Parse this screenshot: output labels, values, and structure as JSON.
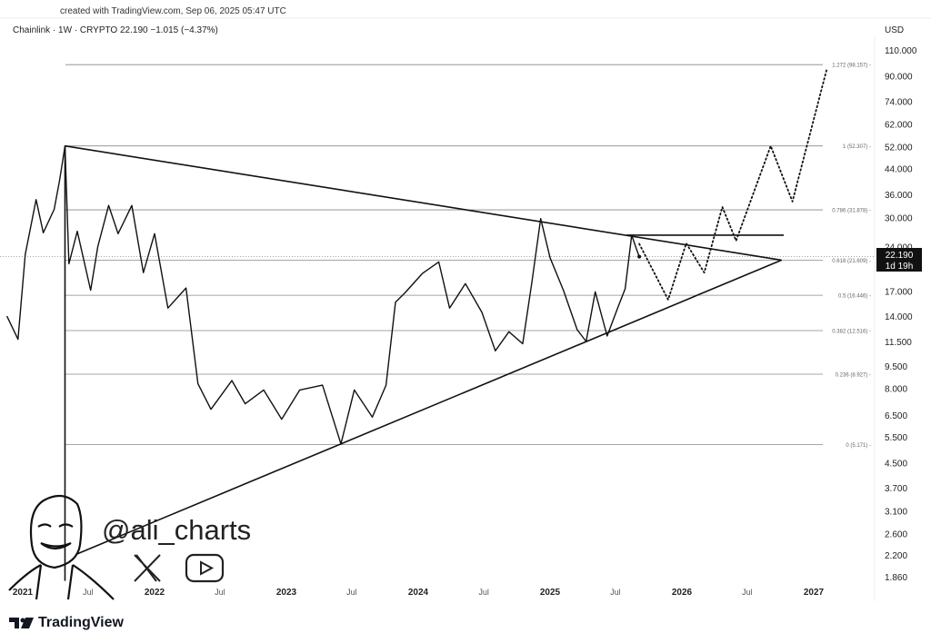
{
  "header": {
    "credit": "created with TradingView.com, Sep 06, 2025 05:47 UTC",
    "symbol_legend": "Chainlink · 1W · CRYPTO  22.190  −1.015 (−4.37%)",
    "currency": "USD"
  },
  "watermark": {
    "handle": "@ali_charts",
    "icons": [
      "x-logo-icon",
      "youtube-icon"
    ]
  },
  "footer": {
    "brand": "TradingView"
  },
  "chart_data": {
    "type": "line",
    "title": "",
    "xlabel": "",
    "ylabel": "",
    "y_scale": "log",
    "ylim": [
      1.86,
      110
    ],
    "xlim": [
      "2020-11-01",
      "2027-04-01"
    ],
    "grid": false,
    "y_ticks": [
      "110.000",
      "90.000",
      "74.000",
      "62.000",
      "52.000",
      "44.000",
      "36.000",
      "30.000",
      "24.000",
      "17.000",
      "14.000",
      "11.500",
      "9.500",
      "8.000",
      "6.500",
      "5.500",
      "4.500",
      "3.700",
      "3.100",
      "2.600",
      "2.200",
      "1.860"
    ],
    "x_ticks": [
      {
        "date": "2021-01-01",
        "label": "2021"
      },
      {
        "date": "2021-07-01",
        "label": "Jul"
      },
      {
        "date": "2022-01-01",
        "label": "2022"
      },
      {
        "date": "2022-07-01",
        "label": "Jul"
      },
      {
        "date": "2023-01-01",
        "label": "2023"
      },
      {
        "date": "2023-07-01",
        "label": "Jul"
      },
      {
        "date": "2024-01-01",
        "label": "2024"
      },
      {
        "date": "2024-07-01",
        "label": "Jul"
      },
      {
        "date": "2025-01-01",
        "label": "2025"
      },
      {
        "date": "2025-07-01",
        "label": "Jul"
      },
      {
        "date": "2026-01-01",
        "label": "2026"
      },
      {
        "date": "2026-07-01",
        "label": "Jul"
      },
      {
        "date": "2027-01-01",
        "label": "2027"
      }
    ],
    "current_price": {
      "value": 22.19,
      "label": "22.190",
      "countdown": "1d 19h"
    },
    "series": [
      {
        "style": "solid",
        "points": [
          [
            "2020-11-18",
            14.0
          ],
          [
            "2020-12-19",
            11.7
          ],
          [
            "2021-01-08",
            22.6
          ],
          [
            "2021-02-07",
            34.5
          ],
          [
            "2021-02-27",
            26.7
          ],
          [
            "2021-03-29",
            32.0
          ],
          [
            "2021-04-13",
            40.0
          ],
          [
            "2021-04-28",
            52.3
          ],
          [
            "2021-05-09",
            21.0
          ],
          [
            "2021-06-01",
            27.0
          ],
          [
            "2021-07-08",
            17.1
          ],
          [
            "2021-07-28",
            24.0
          ],
          [
            "2021-08-27",
            33.0
          ],
          [
            "2021-09-22",
            26.5
          ],
          [
            "2021-10-30",
            33.0
          ],
          [
            "2021-12-01",
            19.6
          ],
          [
            "2022-01-01",
            26.5
          ],
          [
            "2022-02-07",
            14.9
          ],
          [
            "2022-03-29",
            17.4
          ],
          [
            "2022-05-01",
            8.3
          ],
          [
            "2022-06-06",
            6.8
          ],
          [
            "2022-08-03",
            8.5
          ],
          [
            "2022-09-09",
            7.1
          ],
          [
            "2022-10-30",
            7.9
          ],
          [
            "2022-12-19",
            6.3
          ],
          [
            "2023-02-07",
            7.9
          ],
          [
            "2023-04-11",
            8.2
          ],
          [
            "2023-06-01",
            5.2
          ],
          [
            "2023-07-08",
            7.9
          ],
          [
            "2023-08-27",
            6.4
          ],
          [
            "2023-10-04",
            8.2
          ],
          [
            "2023-10-30",
            15.6
          ],
          [
            "2023-11-24",
            16.7
          ],
          [
            "2024-01-13",
            19.5
          ],
          [
            "2024-02-27",
            21.3
          ],
          [
            "2024-03-28",
            14.9
          ],
          [
            "2024-05-11",
            18.0
          ],
          [
            "2024-06-26",
            14.4
          ],
          [
            "2024-08-02",
            10.7
          ],
          [
            "2024-09-09",
            12.4
          ],
          [
            "2024-10-17",
            11.3
          ],
          [
            "2024-11-11",
            18.0
          ],
          [
            "2024-12-06",
            29.8
          ],
          [
            "2025-01-01",
            22.0
          ],
          [
            "2025-02-07",
            17.1
          ],
          [
            "2025-03-17",
            12.6
          ],
          [
            "2025-04-11",
            11.5
          ],
          [
            "2025-05-06",
            16.9
          ],
          [
            "2025-06-08",
            12.0
          ],
          [
            "2025-07-08",
            15.0
          ],
          [
            "2025-07-28",
            17.3
          ],
          [
            "2025-08-15",
            26.2
          ],
          [
            "2025-08-28",
            23.6
          ],
          [
            "2025-09-05",
            22.19
          ]
        ]
      },
      {
        "style": "dotted",
        "points": [
          [
            "2025-09-05",
            24.5
          ],
          [
            "2025-11-24",
            15.9
          ],
          [
            "2026-01-13",
            24.6
          ],
          [
            "2026-03-04",
            19.6
          ],
          [
            "2026-04-23",
            32.6
          ],
          [
            "2026-05-31",
            25.1
          ],
          [
            "2026-09-04",
            52.3
          ],
          [
            "2026-11-03",
            34.0
          ],
          [
            "2027-02-07",
            95.6
          ]
        ]
      }
    ],
    "fib_levels": [
      {
        "ratio": "1.272",
        "value": 98.157,
        "label": "1.272 (98.157)"
      },
      {
        "ratio": "1",
        "value": 52.307,
        "label": "1 (52.307)"
      },
      {
        "ratio": "0.786",
        "value": 31.878,
        "label": "0.786 (31.878)"
      },
      {
        "ratio": "0.618",
        "value": 21.609,
        "label": "0.618 (21.609)"
      },
      {
        "ratio": "0.5",
        "value": 16.446,
        "label": "0.5 (16.446)"
      },
      {
        "ratio": "0.382",
        "value": 12.516,
        "label": "0.382 (12.516)"
      },
      {
        "ratio": "0.236",
        "value": 8.927,
        "label": "0.236 (8.927)"
      },
      {
        "ratio": "0",
        "value": 5.171,
        "label": "0 (5.171)"
      }
    ],
    "trendlines": [
      {
        "name": "triangle-upper",
        "from": [
          "2021-04-28",
          52.3
        ],
        "to": [
          "2026-10-04",
          21.6
        ]
      },
      {
        "name": "triangle-lower",
        "from": [
          "2021-06-01",
          2.22
        ],
        "to": [
          "2026-10-04",
          21.6
        ]
      },
      {
        "name": "resistance",
        "from": [
          "2025-08-01",
          26.2
        ],
        "to": [
          "2026-10-10",
          26.2
        ]
      },
      {
        "name": "vertical-marker",
        "from": [
          "2021-04-28",
          52.3
        ],
        "to": [
          "2021-04-28",
          1.8
        ]
      }
    ]
  }
}
